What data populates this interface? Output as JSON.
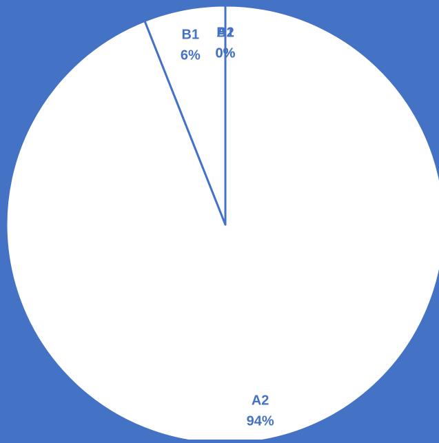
{
  "colors": {
    "background": "#4472C4",
    "slice_fill": "#FFFFFF",
    "label_text": "#4472C4"
  },
  "chart_data": {
    "type": "pie",
    "title": "",
    "start_angle_deg": 0,
    "direction": "clockwise",
    "legend": "none",
    "slices": [
      {
        "name": "A1",
        "value": 0,
        "label": "A1",
        "percent_label": "0%"
      },
      {
        "name": "A2",
        "value": 94,
        "label": "A2",
        "percent_label": "94%"
      },
      {
        "name": "B1",
        "value": 6,
        "label": "B1",
        "percent_label": "6%"
      },
      {
        "name": "B2",
        "value": 0,
        "label": "B2",
        "percent_label": "0%"
      }
    ]
  }
}
